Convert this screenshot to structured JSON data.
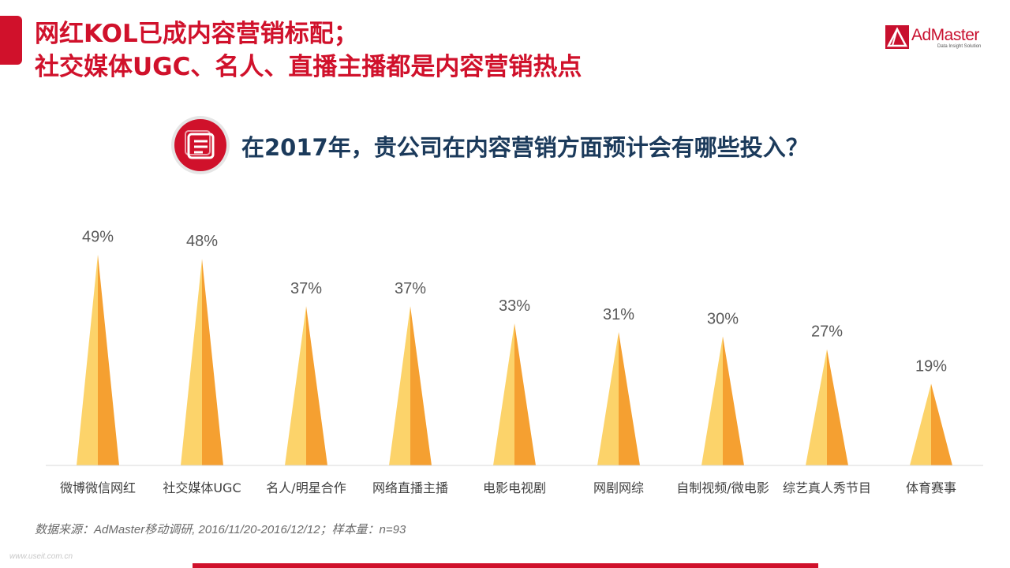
{
  "header": {
    "title_line1": "网红KOL已成内容营销标配；",
    "title_line2": "社交媒体UGC、名人、直播主播都是内容营销热点"
  },
  "logo": {
    "brand": "AdMaster",
    "tagline": "Data Insight Solution",
    "registered": "®"
  },
  "question": {
    "icon": "document-list-icon",
    "text": "在2017年，贵公司在内容营销方面预计会有哪些投入？"
  },
  "chart_data": {
    "type": "bar",
    "mark_shape": "pointed-cone",
    "categories": [
      "微博微信网红",
      "社交媒体UGC",
      "名人/明星合作",
      "网络直播主播",
      "电影电视剧",
      "网剧网综",
      "自制视频/微电影",
      "综艺真人秀节目",
      "体育赛事"
    ],
    "values": [
      49,
      48,
      37,
      37,
      33,
      31,
      30,
      27,
      19
    ],
    "value_labels": [
      "49%",
      "48%",
      "37%",
      "37%",
      "33%",
      "31%",
      "30%",
      "27%",
      "19%"
    ],
    "unit": "%",
    "ylim": [
      0,
      55
    ],
    "grid": false,
    "legend": "none",
    "colors": {
      "cone_light": "#fcd36a",
      "cone_dark": "#f5a031",
      "axis": "#d9d9d9",
      "labels": "#595959"
    }
  },
  "footer": {
    "source": "数据来源：AdMaster移动调研, 2016/11/20-2016/12/12；样本量：n=93",
    "watermark": "www.useit.com.cn"
  },
  "colors": {
    "accent": "#d0112b",
    "question_text": "#1b3a5b"
  }
}
